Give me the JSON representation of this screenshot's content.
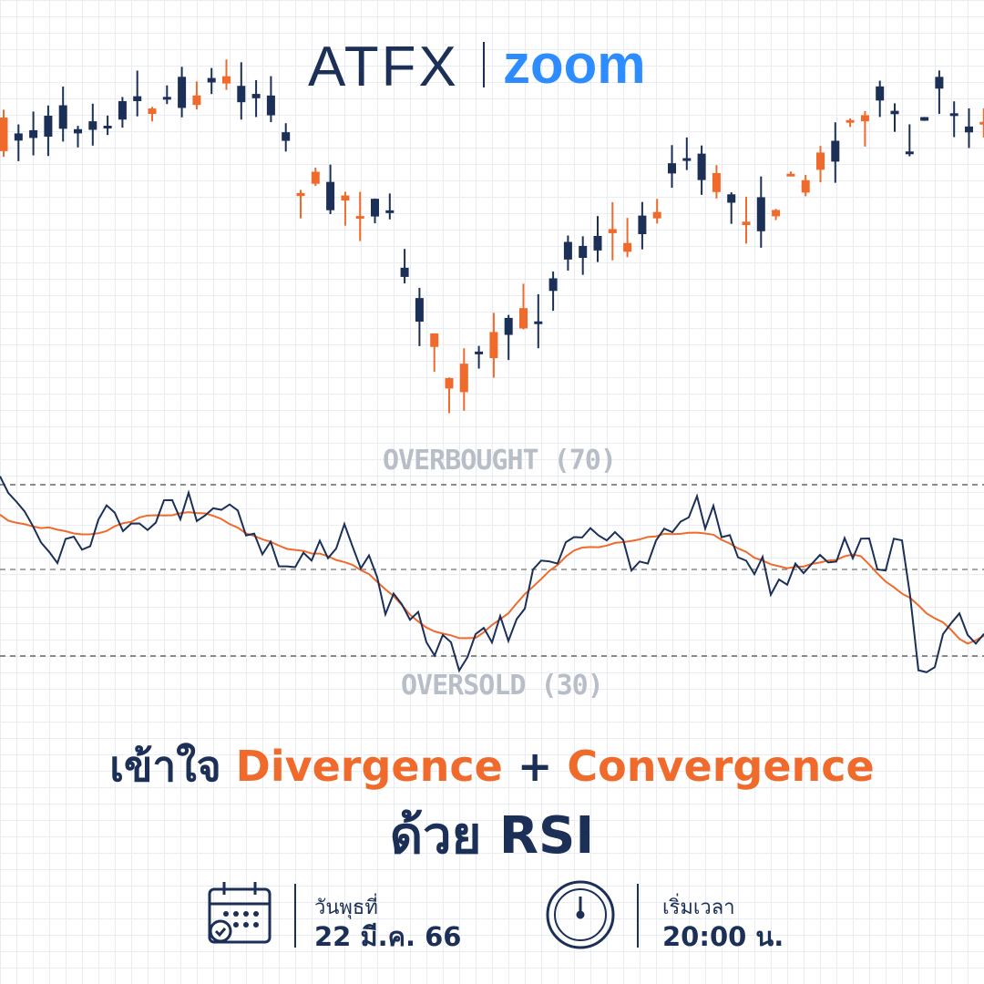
{
  "logo": {
    "brand": "ATFX",
    "partner": "zoom"
  },
  "rsi_levels": {
    "overbought": "OVERBOUGHT (70)",
    "oversold": "OVERSOLD (30)"
  },
  "headline": {
    "line1": {
      "prefix": "เข้าใจ",
      "term1": "Divergence",
      "joiner": "+",
      "term2": "Convergence"
    },
    "line2": "ด้วย RSI"
  },
  "event": {
    "date_label": "วันพุธที่",
    "date": "22 มี.ค. 66",
    "time_label": "เริ่มเวลา",
    "time": "20:00 น."
  }
}
